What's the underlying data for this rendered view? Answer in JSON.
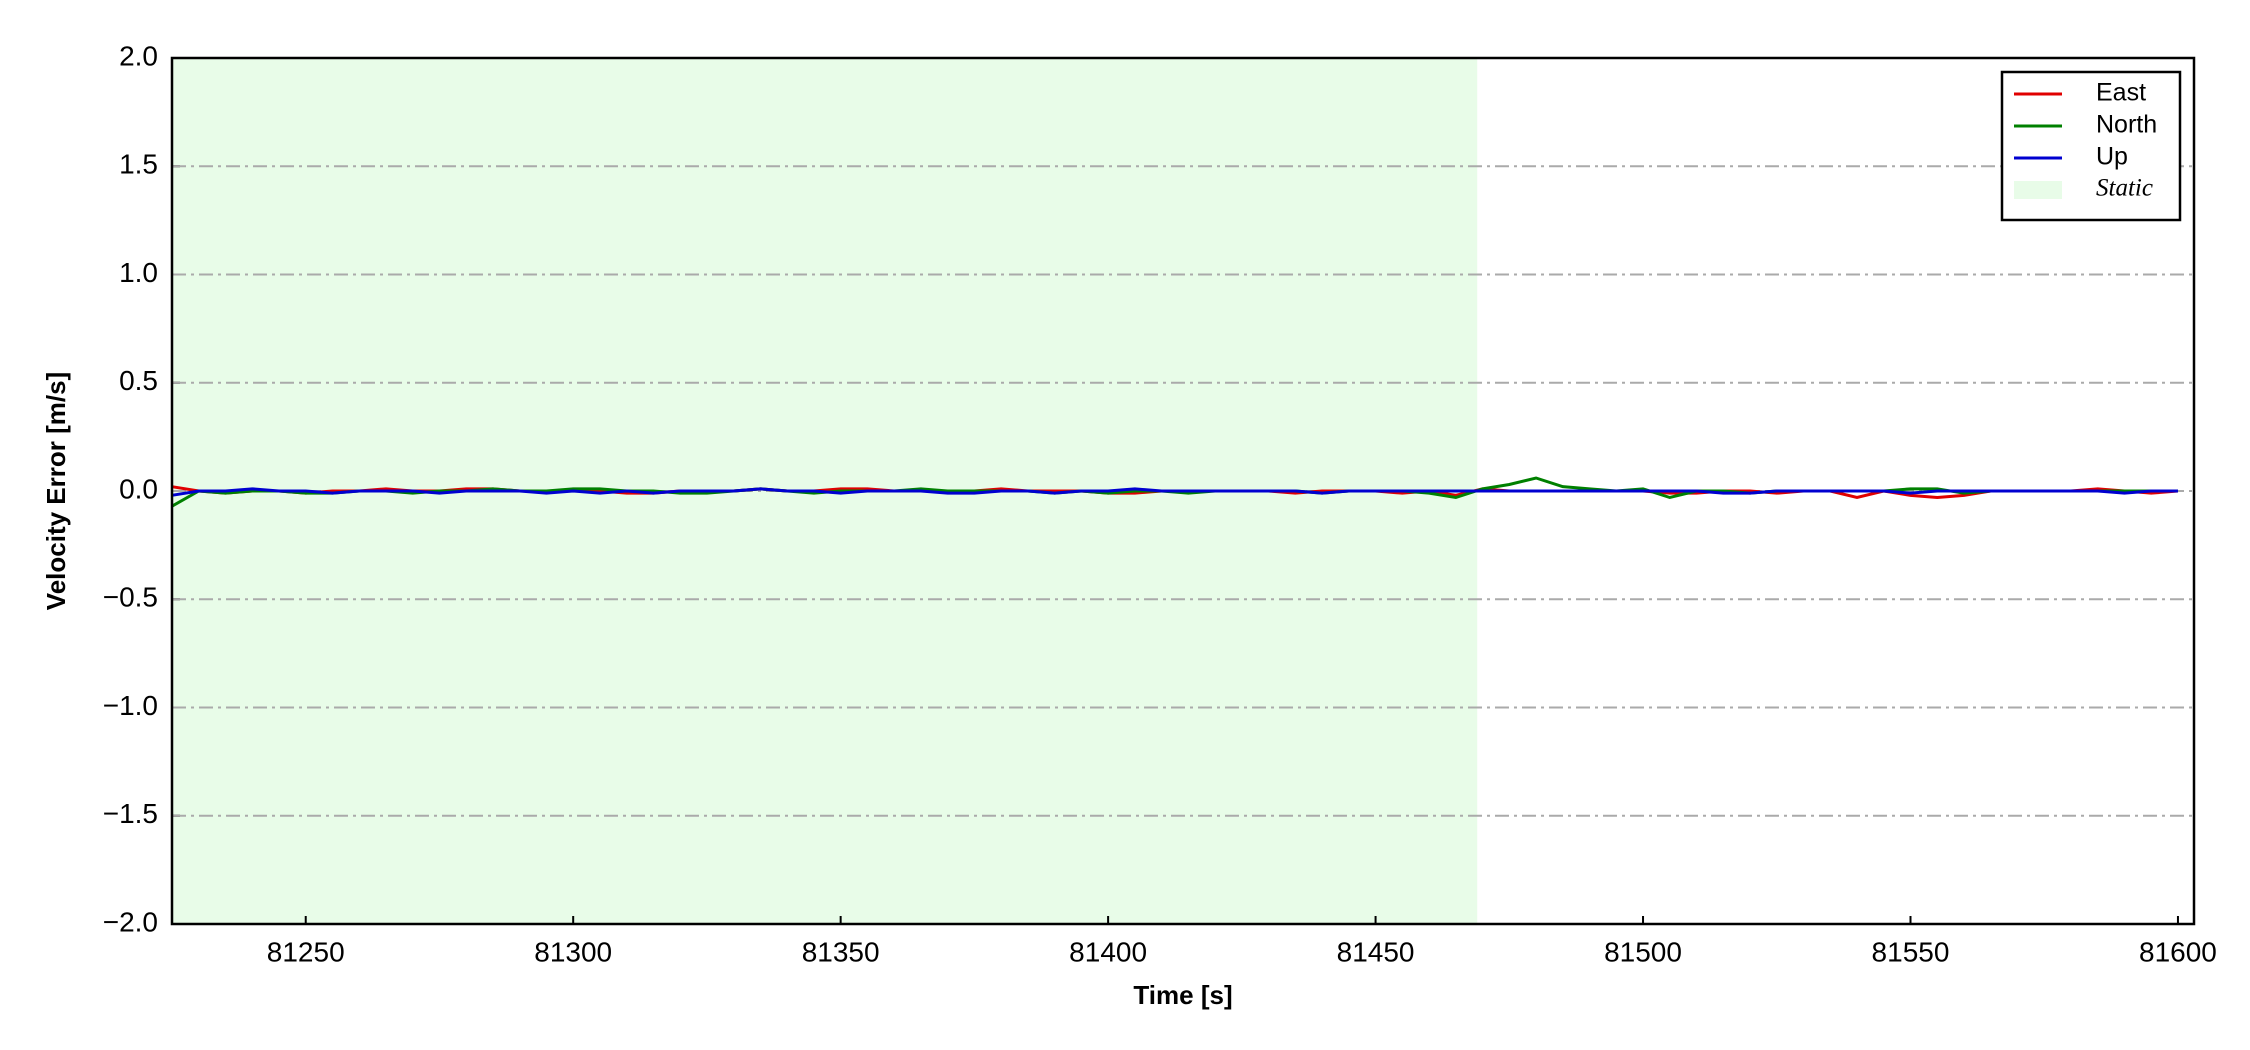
{
  "chart_data": {
    "type": "line",
    "xlabel": "Time [s]",
    "ylabel": "Velocity Error [m/s]",
    "x": [
      81225,
      81230,
      81235,
      81240,
      81245,
      81250,
      81255,
      81260,
      81265,
      81270,
      81275,
      81280,
      81285,
      81290,
      81295,
      81300,
      81305,
      81310,
      81315,
      81320,
      81325,
      81330,
      81335,
      81340,
      81345,
      81350,
      81355,
      81360,
      81365,
      81370,
      81375,
      81380,
      81385,
      81390,
      81395,
      81400,
      81405,
      81410,
      81415,
      81420,
      81425,
      81430,
      81435,
      81440,
      81445,
      81450,
      81455,
      81460,
      81465,
      81470,
      81475,
      81480,
      81485,
      81490,
      81495,
      81500,
      81505,
      81510,
      81515,
      81520,
      81525,
      81530,
      81535,
      81540,
      81545,
      81550,
      81555,
      81560,
      81565,
      81570,
      81575,
      81580,
      81585,
      81590,
      81595,
      81600
    ],
    "series": [
      {
        "name": "East",
        "color": "#e00000",
        "values": [
          0.02,
          0.0,
          -0.01,
          0.0,
          0.0,
          -0.01,
          0.0,
          0.0,
          0.01,
          0.0,
          0.0,
          0.01,
          0.01,
          0.0,
          0.0,
          0.0,
          0.0,
          -0.01,
          -0.01,
          0.0,
          0.0,
          0.0,
          0.01,
          0.0,
          0.0,
          0.01,
          0.01,
          0.0,
          0.0,
          0.0,
          0.0,
          0.01,
          0.0,
          0.0,
          0.0,
          -0.01,
          -0.01,
          0.0,
          0.0,
          0.0,
          0.0,
          0.0,
          -0.01,
          0.0,
          0.0,
          0.0,
          -0.01,
          0.0,
          -0.02,
          0.01,
          0.0,
          0.0,
          0.0,
          0.0,
          0.0,
          0.0,
          -0.01,
          -0.01,
          0.0,
          0.0,
          -0.01,
          0.0,
          0.0,
          -0.03,
          0.0,
          -0.02,
          -0.03,
          -0.02,
          0.0,
          0.0,
          0.0,
          0.0,
          0.01,
          0.0,
          -0.01,
          0.0
        ]
      },
      {
        "name": "North",
        "color": "#008000",
        "values": [
          -0.07,
          0.0,
          -0.01,
          0.0,
          0.0,
          -0.01,
          -0.01,
          0.0,
          0.0,
          -0.01,
          0.0,
          0.0,
          0.01,
          0.0,
          0.0,
          0.01,
          0.01,
          0.0,
          0.0,
          -0.01,
          -0.01,
          0.0,
          0.01,
          0.0,
          -0.01,
          0.0,
          0.0,
          0.0,
          0.01,
          0.0,
          0.0,
          0.0,
          0.0,
          -0.01,
          0.0,
          -0.01,
          0.0,
          0.0,
          -0.01,
          0.0,
          0.0,
          0.0,
          0.0,
          -0.01,
          0.0,
          0.0,
          0.0,
          -0.01,
          -0.03,
          0.01,
          0.03,
          0.06,
          0.02,
          0.01,
          0.0,
          0.01,
          -0.03,
          0.0,
          0.0,
          -0.01,
          0.0,
          0.0,
          0.0,
          0.0,
          0.0,
          0.01,
          0.01,
          -0.01,
          0.0,
          0.0,
          0.0,
          0.0,
          0.0,
          0.0,
          0.0,
          0.0
        ]
      },
      {
        "name": "Up",
        "color": "#0000d0",
        "values": [
          -0.02,
          0.0,
          0.0,
          0.01,
          0.0,
          0.0,
          -0.01,
          0.0,
          0.0,
          0.0,
          -0.01,
          0.0,
          0.0,
          0.0,
          -0.01,
          0.0,
          -0.01,
          0.0,
          -0.01,
          0.0,
          0.0,
          0.0,
          0.01,
          0.0,
          0.0,
          -0.01,
          0.0,
          0.0,
          0.0,
          -0.01,
          -0.01,
          0.0,
          0.0,
          -0.01,
          0.0,
          0.0,
          0.01,
          0.0,
          0.0,
          0.0,
          0.0,
          0.0,
          0.0,
          -0.01,
          0.0,
          0.0,
          0.0,
          0.0,
          0.0,
          0.0,
          0.0,
          0.0,
          0.0,
          0.0,
          0.0,
          0.0,
          0.0,
          0.0,
          -0.01,
          -0.01,
          0.0,
          0.0,
          0.0,
          0.0,
          0.0,
          -0.01,
          0.0,
          0.0,
          0.0,
          0.0,
          0.0,
          0.0,
          0.0,
          -0.01,
          0.0,
          0.0
        ]
      }
    ],
    "spans": [
      {
        "label": "Static",
        "x": [
          81225,
          81469
        ],
        "color": "#e8fce8"
      }
    ],
    "xlim": [
      81225,
      81603
    ],
    "ylim": [
      -2,
      2
    ],
    "xticks": [
      81250,
      81300,
      81350,
      81400,
      81450,
      81500,
      81550,
      81600
    ],
    "yticks": [
      {
        "value": -2,
        "label": "−2.0"
      },
      {
        "value": -1.5,
        "label": "−1.5"
      },
      {
        "value": -1,
        "label": "−1.0"
      },
      {
        "value": -0.5,
        "label": "−0.5"
      },
      {
        "value": 0,
        "label": "0.0"
      },
      {
        "value": 0.5,
        "label": "0.5"
      },
      {
        "value": 1,
        "label": "1.0"
      },
      {
        "value": 1.5,
        "label": "1.5"
      },
      {
        "value": 2,
        "label": "2.0"
      }
    ],
    "grid": true,
    "legend": "upper right"
  }
}
